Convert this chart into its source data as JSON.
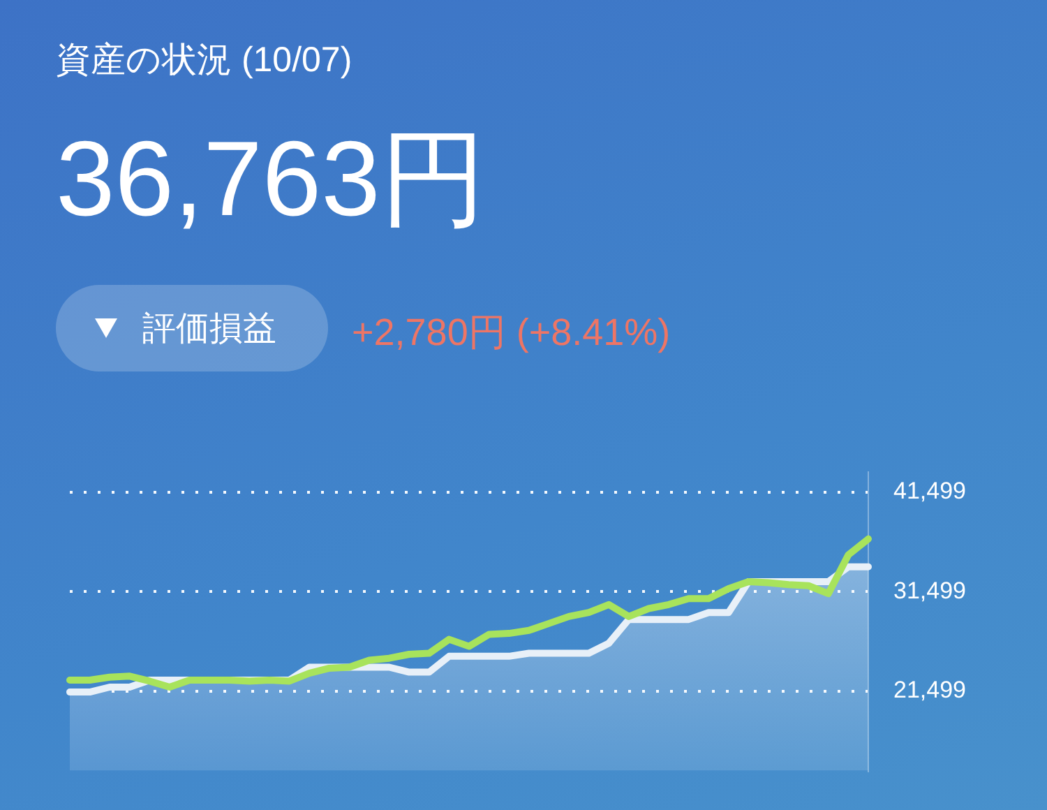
{
  "chart_data": {
    "type": "line",
    "title": "資産の状況 (10/07)",
    "annotations": [
      "36,763円",
      "評価損益",
      "+2,780円 (+8.41%)"
    ],
    "categories": [
      null,
      null,
      null,
      null,
      null,
      null,
      null,
      null,
      null,
      null,
      null,
      null,
      null,
      null,
      null,
      null,
      null,
      null,
      null,
      null,
      null,
      null,
      null,
      null,
      null,
      null,
      null,
      null,
      null,
      null,
      null,
      null,
      null,
      null,
      null,
      null,
      null,
      null,
      null,
      null,
      null
    ],
    "series": [
      {
        "type": "area",
        "color": "#e8f0f8",
        "values": [
          21400,
          21400,
          21900,
          21900,
          22600,
          22600,
          22600,
          22600,
          22600,
          22600,
          22600,
          22600,
          23900,
          23900,
          23900,
          23900,
          23900,
          23400,
          23400,
          25000,
          25000,
          25000,
          25000,
          25300,
          25300,
          25300,
          25300,
          26300,
          28700,
          28700,
          28700,
          28700,
          29400,
          29400,
          32500,
          32500,
          32500,
          32500,
          32500,
          34000,
          34000
        ]
      },
      {
        "type": "line",
        "color": "#a8e35c",
        "values": [
          22600,
          22600,
          22900,
          23000,
          22500,
          21900,
          22600,
          22600,
          22600,
          22500,
          22600,
          22500,
          23300,
          23800,
          23900,
          24600,
          24800,
          25200,
          25300,
          26700,
          26000,
          27200,
          27300,
          27600,
          28300,
          29000,
          29400,
          30200,
          29000,
          29800,
          30200,
          30800,
          30800,
          31800,
          32500,
          32400,
          32200,
          32100,
          31300,
          35200,
          36800
        ]
      }
    ],
    "ylim": [
      13500,
      43500
    ],
    "yticks": [
      {
        "value": 21499,
        "label": "21,499"
      },
      {
        "value": 31499,
        "label": "31,499"
      },
      {
        "value": 41499,
        "label": "41,499"
      }
    ],
    "grid": "y",
    "legend": false,
    "tick_labels": "y",
    "marker": "none",
    "line_style": "solid"
  }
}
